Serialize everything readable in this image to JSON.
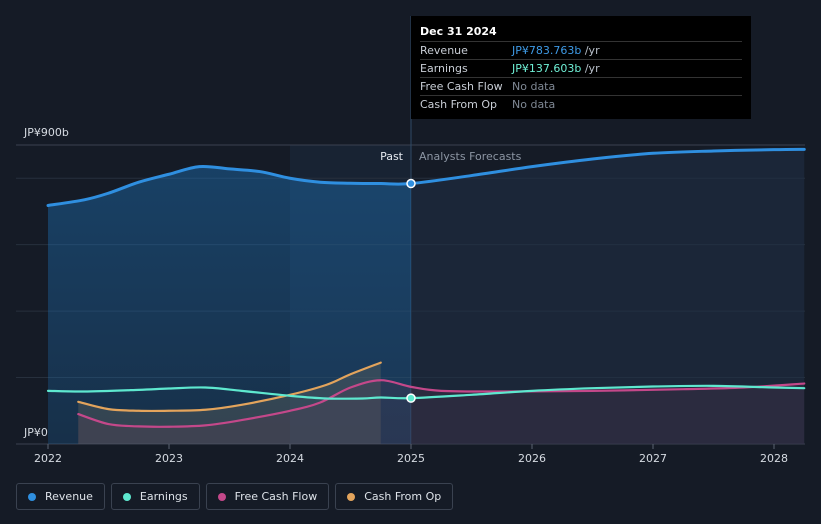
{
  "tooltip": {
    "date": "Dec 31 2024",
    "rows": [
      {
        "label": "Revenue",
        "value": "JP¥783.763b",
        "unit": " /yr"
      },
      {
        "label": "Earnings",
        "value": "JP¥137.603b",
        "unit": " /yr"
      },
      {
        "label": "Free Cash Flow",
        "value": "No data"
      },
      {
        "label": "Cash From Op",
        "value": "No data"
      }
    ]
  },
  "legend": [
    {
      "label": "Revenue",
      "color": "#2f8fe0"
    },
    {
      "label": "Earnings",
      "color": "#5ee8cf"
    },
    {
      "label": "Free Cash Flow",
      "color": "#c4488a"
    },
    {
      "label": "Cash From Op",
      "color": "#e3a45c"
    }
  ],
  "chart_data": {
    "type": "line",
    "ylim": [
      0,
      900
    ],
    "y_unit": "JP¥ billions",
    "y_tick_labels": [
      "JP¥900b",
      "JP¥0"
    ],
    "x_tick_labels": [
      "2022",
      "2023",
      "2024",
      "2025",
      "2026",
      "2027",
      "2028"
    ],
    "xlim": [
      2022.0,
      2028.25
    ],
    "divider": {
      "x": 2025.0,
      "past_label": "Past",
      "forecast_label": "Analysts Forecasts"
    },
    "series": [
      {
        "name": "Revenue",
        "color": "#2f8fe0",
        "points": [
          [
            2022.0,
            718
          ],
          [
            2022.3,
            735
          ],
          [
            2022.5,
            755
          ],
          [
            2022.75,
            788
          ],
          [
            2023.0,
            812
          ],
          [
            2023.25,
            835
          ],
          [
            2023.5,
            828
          ],
          [
            2023.75,
            820
          ],
          [
            2024.0,
            800
          ],
          [
            2024.25,
            788
          ],
          [
            2024.5,
            785
          ],
          [
            2024.75,
            784
          ],
          [
            2025.0,
            784
          ],
          [
            2025.5,
            808
          ],
          [
            2026.0,
            835
          ],
          [
            2026.5,
            858
          ],
          [
            2027.0,
            875
          ],
          [
            2027.5,
            882
          ],
          [
            2028.0,
            886
          ],
          [
            2028.25,
            887
          ]
        ]
      },
      {
        "name": "Earnings",
        "color": "#5ee8cf",
        "points": [
          [
            2022.0,
            160
          ],
          [
            2022.3,
            158
          ],
          [
            2022.75,
            163
          ],
          [
            2023.0,
            167
          ],
          [
            2023.3,
            170
          ],
          [
            2023.6,
            160
          ],
          [
            2024.0,
            145
          ],
          [
            2024.3,
            137
          ],
          [
            2024.6,
            137
          ],
          [
            2024.75,
            140
          ],
          [
            2025.0,
            138
          ],
          [
            2025.5,
            148
          ],
          [
            2026.0,
            160
          ],
          [
            2026.5,
            168
          ],
          [
            2027.0,
            173
          ],
          [
            2027.5,
            175
          ],
          [
            2028.0,
            170
          ],
          [
            2028.25,
            168
          ]
        ]
      },
      {
        "name": "Free Cash Flow",
        "color": "#c4488a",
        "points": [
          [
            2022.25,
            90
          ],
          [
            2022.5,
            60
          ],
          [
            2022.75,
            53
          ],
          [
            2023.0,
            52
          ],
          [
            2023.3,
            56
          ],
          [
            2023.6,
            72
          ],
          [
            2024.0,
            100
          ],
          [
            2024.25,
            125
          ],
          [
            2024.5,
            170
          ],
          [
            2024.75,
            192
          ],
          [
            2025.0,
            172
          ],
          [
            2025.25,
            160
          ],
          [
            2025.75,
            158
          ],
          [
            2026.5,
            160
          ],
          [
            2027.25,
            165
          ],
          [
            2027.75,
            170
          ],
          [
            2028.25,
            182
          ]
        ]
      },
      {
        "name": "Cash From Op",
        "color": "#e3a45c",
        "points": [
          [
            2022.25,
            127
          ],
          [
            2022.5,
            105
          ],
          [
            2022.75,
            100
          ],
          [
            2023.0,
            100
          ],
          [
            2023.3,
            103
          ],
          [
            2023.6,
            118
          ],
          [
            2024.0,
            148
          ],
          [
            2024.3,
            178
          ],
          [
            2024.5,
            210
          ],
          [
            2024.75,
            245
          ]
        ]
      }
    ],
    "markers": [
      {
        "series": "Revenue",
        "x": 2025.0,
        "y": 784
      },
      {
        "series": "Earnings",
        "x": 2025.0,
        "y": 138
      }
    ]
  }
}
